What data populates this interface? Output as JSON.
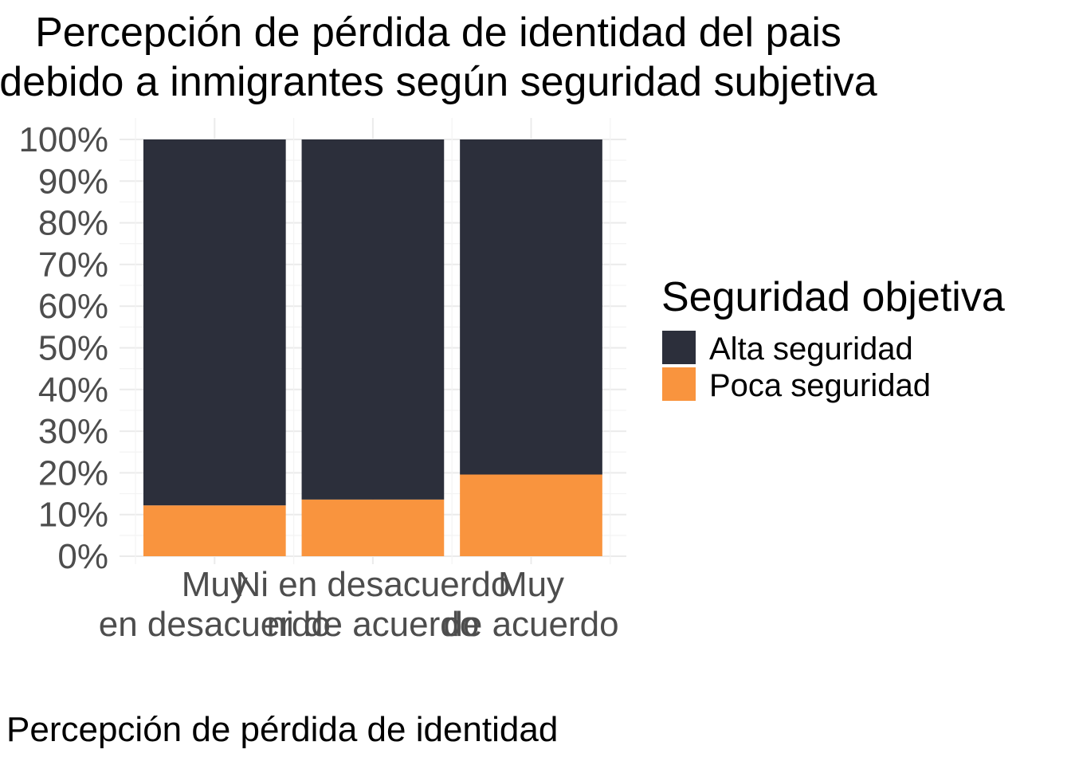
{
  "chart_data": {
    "type": "bar",
    "stacked": true,
    "percent": true,
    "title_lines": [
      "Percepción de pérdida de identidad del pais",
      "debido a inmigrantes según seguridad subjetiva"
    ],
    "xlabel": "Percepción de pérdida de identidad",
    "ylabel": "",
    "categories": [
      [
        "Muy",
        "en desacuerdo"
      ],
      [
        "Ni en desacuerdo",
        "ni de acuerdo"
      ],
      [
        "Muy",
        "de acuerdo"
      ]
    ],
    "series": [
      {
        "name": "Poca seguridad",
        "color": "#F9943E",
        "values": [
          12.2,
          13.6,
          19.6
        ]
      },
      {
        "name": "Alta seguridad",
        "color": "#2C2F3B",
        "values": [
          87.8,
          86.4,
          80.4
        ]
      }
    ],
    "ylim": [
      0,
      100
    ],
    "yticks": [
      "0%",
      "10%",
      "20%",
      "30%",
      "40%",
      "50%",
      "60%",
      "70%",
      "80%",
      "90%",
      "100%"
    ],
    "legend": {
      "title": "Seguridad objetiva",
      "position": "right",
      "entries": [
        {
          "label": "Alta seguridad",
          "color": "#2C2F3B"
        },
        {
          "label": "Poca seguridad",
          "color": "#F9943E"
        }
      ]
    },
    "grid": true
  }
}
